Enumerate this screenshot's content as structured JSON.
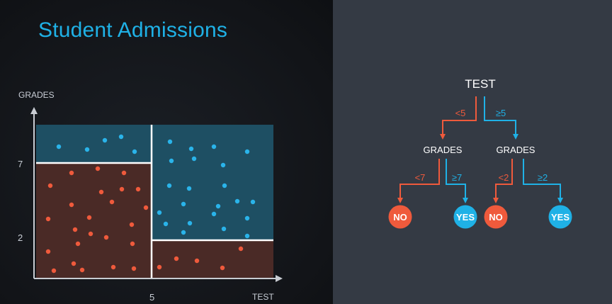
{
  "title": "Student Admissions",
  "plot": {
    "y_axis_label": "GRADES",
    "x_axis_label": "TEST",
    "y_ticks": [
      "7",
      "2"
    ],
    "x_ticks": [
      "5"
    ],
    "colors": {
      "blue_region": "#1e4f63",
      "red_region": "#4a2a26",
      "blue_point": "#2ab4ea",
      "red_point": "#ef5a3c",
      "boundary": "#ffffff"
    },
    "blue_points": [
      [
        83,
        207
      ],
      [
        123,
        211
      ],
      [
        148,
        198
      ],
      [
        171,
        193
      ],
      [
        190,
        214
      ],
      [
        240,
        200
      ],
      [
        270,
        210
      ],
      [
        302,
        207
      ],
      [
        349,
        214
      ],
      [
        242,
        227
      ],
      [
        274,
        224
      ],
      [
        315,
        233
      ],
      [
        239,
        262
      ],
      [
        267,
        266
      ],
      [
        317,
        262
      ],
      [
        225,
        300
      ],
      [
        259,
        288
      ],
      [
        308,
        291
      ],
      [
        335,
        284
      ],
      [
        357,
        285
      ],
      [
        234,
        316
      ],
      [
        268,
        315
      ],
      [
        302,
        302
      ],
      [
        349,
        308
      ],
      [
        259,
        328
      ],
      [
        316,
        323
      ],
      [
        349,
        333
      ]
    ],
    "red_points": [
      [
        71,
        262
      ],
      [
        101,
        244
      ],
      [
        138,
        238
      ],
      [
        175,
        244
      ],
      [
        68,
        309
      ],
      [
        101,
        289
      ],
      [
        143,
        271
      ],
      [
        172,
        267
      ],
      [
        195,
        267
      ],
      [
        206,
        293
      ],
      [
        106,
        324
      ],
      [
        126,
        307
      ],
      [
        158,
        285
      ],
      [
        186,
        317
      ],
      [
        68,
        355
      ],
      [
        110,
        344
      ],
      [
        128,
        330
      ],
      [
        150,
        335
      ],
      [
        187,
        344
      ],
      [
        104,
        372
      ],
      [
        76,
        382
      ],
      [
        116,
        381
      ],
      [
        160,
        377
      ],
      [
        189,
        379
      ],
      [
        225,
        377
      ],
      [
        249,
        365
      ],
      [
        278,
        368
      ],
      [
        314,
        378
      ],
      [
        340,
        351
      ]
    ]
  },
  "tree": {
    "root": "TEST",
    "left_edge": "<5",
    "right_edge": "≥5",
    "left_node": "GRADES",
    "right_node": "GRADES",
    "ll_edge": "<7",
    "lr_edge": "≥7",
    "rl_edge": "<2",
    "rr_edge": "≥2",
    "leaves": [
      "NO",
      "YES",
      "NO",
      "YES"
    ],
    "colors": {
      "no": "#ef5a3c",
      "yes": "#1fb1e6",
      "text": "#ffffff"
    }
  }
}
